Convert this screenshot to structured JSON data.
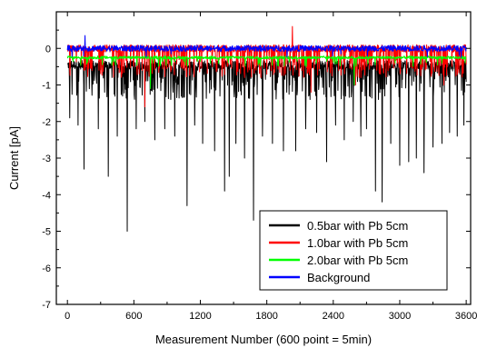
{
  "chart_data": {
    "type": "line",
    "xlabel": "Measurement Number (600 point = 5min)",
    "ylabel": "Current [pA]",
    "xlim": [
      -100,
      3640
    ],
    "ylim": [
      -7,
      1
    ],
    "xticks": [
      0,
      600,
      1200,
      1800,
      2400,
      3000,
      3600
    ],
    "yticks": [
      0,
      -1,
      -2,
      -3,
      -4,
      -5,
      -6,
      -7
    ],
    "grid": false,
    "legend_position": "bottom-right",
    "series": [
      {
        "name": "0.5bar with Pb 5cm",
        "color": "#000000",
        "baseline": -0.45,
        "noise": 0.12,
        "spike_prob": 0.28,
        "spike_range": [
          -1.4,
          -0.5
        ],
        "spikes": [
          {
            "x": 20,
            "y": -1.9
          },
          {
            "x": 95,
            "y": -2.1
          },
          {
            "x": 150,
            "y": -3.3
          },
          {
            "x": 280,
            "y": -2.2
          },
          {
            "x": 370,
            "y": -3.5
          },
          {
            "x": 450,
            "y": -2.4
          },
          {
            "x": 540,
            "y": -5.0
          },
          {
            "x": 620,
            "y": -2.2
          },
          {
            "x": 700,
            "y": -2.0
          },
          {
            "x": 790,
            "y": -2.5
          },
          {
            "x": 880,
            "y": -2.2
          },
          {
            "x": 970,
            "y": -2.4
          },
          {
            "x": 1080,
            "y": -4.3
          },
          {
            "x": 1150,
            "y": -2.1
          },
          {
            "x": 1220,
            "y": -2.6
          },
          {
            "x": 1330,
            "y": -2.8
          },
          {
            "x": 1420,
            "y": -3.9
          },
          {
            "x": 1460,
            "y": -3.5
          },
          {
            "x": 1520,
            "y": -2.6
          },
          {
            "x": 1600,
            "y": -3.0
          },
          {
            "x": 1680,
            "y": -4.7
          },
          {
            "x": 1760,
            "y": -2.4
          },
          {
            "x": 1850,
            "y": -2.6
          },
          {
            "x": 1950,
            "y": -2.8
          },
          {
            "x": 2060,
            "y": -2.8
          },
          {
            "x": 2150,
            "y": -2.2
          },
          {
            "x": 2250,
            "y": -2.3
          },
          {
            "x": 2340,
            "y": -3.1
          },
          {
            "x": 2420,
            "y": -2.1
          },
          {
            "x": 2500,
            "y": -2.5
          },
          {
            "x": 2580,
            "y": -2.0
          },
          {
            "x": 2650,
            "y": -2.4
          },
          {
            "x": 2700,
            "y": -2.2
          },
          {
            "x": 2780,
            "y": -3.9
          },
          {
            "x": 2840,
            "y": -4.2
          },
          {
            "x": 2920,
            "y": -2.6
          },
          {
            "x": 3000,
            "y": -3.2
          },
          {
            "x": 3080,
            "y": -3.1
          },
          {
            "x": 3150,
            "y": -3.0
          },
          {
            "x": 3220,
            "y": -3.4
          },
          {
            "x": 3300,
            "y": -2.7
          },
          {
            "x": 3380,
            "y": -2.6
          },
          {
            "x": 3450,
            "y": -2.3
          },
          {
            "x": 3520,
            "y": -2.4
          },
          {
            "x": 3580,
            "y": -2.1
          }
        ]
      },
      {
        "name": "1.0bar with Pb 5cm",
        "color": "#ff0000",
        "baseline": 0.0,
        "noise": 0.1,
        "spike_prob": 0.2,
        "spike_range": [
          -0.8,
          -0.3
        ],
        "spikes": [
          {
            "x": 150,
            "y": -0.6
          },
          {
            "x": 700,
            "y": -1.6
          },
          {
            "x": 2030,
            "y": 0.6
          },
          {
            "x": 2200,
            "y": -1.2
          },
          {
            "x": 2600,
            "y": -1.0
          },
          {
            "x": 3400,
            "y": -1.0
          }
        ]
      },
      {
        "name": "2.0bar with Pb 5cm",
        "color": "#00ff00",
        "baseline": -0.25,
        "noise": 0.04,
        "spike_prob": 0.04,
        "spike_range": [
          -0.5,
          -0.35
        ],
        "spikes": [
          {
            "x": 750,
            "y": -1.1
          },
          {
            "x": 2590,
            "y": -1.0
          }
        ]
      },
      {
        "name": "Background",
        "color": "#0000ff",
        "baseline": 0.0,
        "noise": 0.08,
        "spike_prob": 0.01,
        "spike_range": [
          -0.25,
          -0.15
        ],
        "spikes": [
          {
            "x": 160,
            "y": 0.35
          }
        ]
      }
    ]
  }
}
